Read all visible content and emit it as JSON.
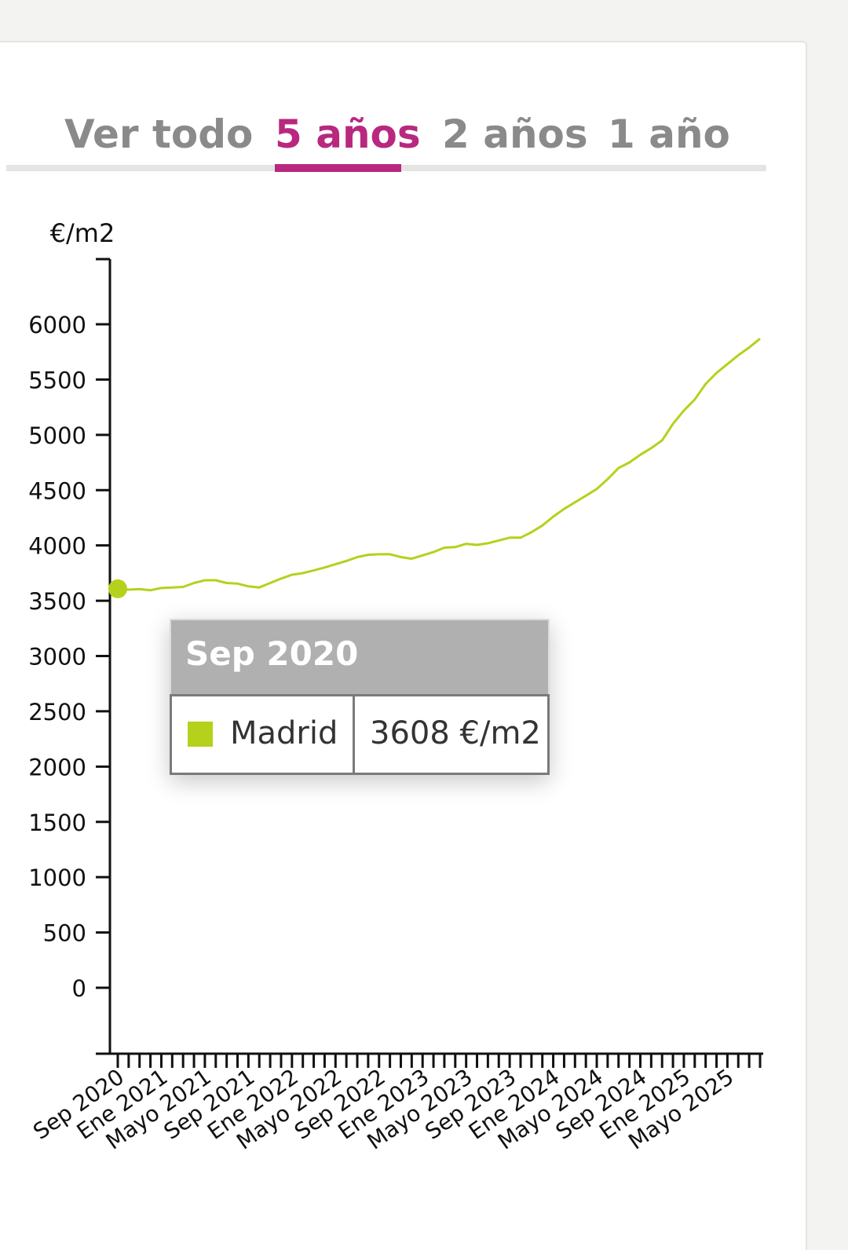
{
  "tabs": [
    {
      "label": "Ver todo",
      "active": false
    },
    {
      "label": "5 años",
      "active": true
    },
    {
      "label": "2 años",
      "active": false
    },
    {
      "label": "1 año",
      "active": false
    }
  ],
  "colors": {
    "accent": "#b8287f",
    "series": "#b5d11c",
    "axis": "#111111",
    "tab_inactive": "#8a8a8a"
  },
  "tooltip": {
    "title": "Sep 2020",
    "series_name": "Madrid",
    "value": "3608 €/m2"
  },
  "chart_data": {
    "type": "line",
    "ylabel": "€/m2",
    "ylim": [
      -600,
      6600
    ],
    "yticks": [
      0,
      500,
      1000,
      1500,
      2000,
      2500,
      3000,
      3500,
      4000,
      4500,
      5000,
      5500,
      6000
    ],
    "xtick_labels": [
      "Sep 2020",
      "Ene 2021",
      "Mayo 2021",
      "Sep 2021",
      "Ene 2022",
      "Mayo 2022",
      "Sep 2022",
      "Ene 2023",
      "Mayo 2023",
      "Sep 2023",
      "Ene 2024",
      "Mayo 2024",
      "Sep 2024",
      "Ene 2025",
      "Mayo 2025"
    ],
    "x": [
      "Sep 2020",
      "Oct 2020",
      "Nov 2020",
      "Dic 2020",
      "Ene 2021",
      "Feb 2021",
      "Mar 2021",
      "Abr 2021",
      "Mayo 2021",
      "Jun 2021",
      "Jul 2021",
      "Ago 2021",
      "Sep 2021",
      "Oct 2021",
      "Nov 2021",
      "Dic 2021",
      "Ene 2022",
      "Feb 2022",
      "Mar 2022",
      "Abr 2022",
      "Mayo 2022",
      "Jun 2022",
      "Jul 2022",
      "Ago 2022",
      "Sep 2022",
      "Oct 2022",
      "Nov 2022",
      "Dic 2022",
      "Ene 2023",
      "Feb 2023",
      "Mar 2023",
      "Abr 2023",
      "Mayo 2023",
      "Jun 2023",
      "Jul 2023",
      "Ago 2023",
      "Sep 2023",
      "Oct 2023",
      "Nov 2023",
      "Dic 2023",
      "Ene 2024",
      "Feb 2024",
      "Mar 2024",
      "Abr 2024",
      "Mayo 2024",
      "Jun 2024",
      "Jul 2024",
      "Ago 2024",
      "Sep 2024",
      "Oct 2024",
      "Nov 2024",
      "Dic 2024",
      "Ene 2025",
      "Feb 2025",
      "Mar 2025",
      "Abr 2025",
      "Mayo 2025",
      "Jun 2025",
      "Jul 2025",
      "Ago 2025"
    ],
    "series": [
      {
        "name": "Madrid",
        "values": [
          3608,
          3600,
          3605,
          3595,
          3615,
          3620,
          3625,
          3660,
          3685,
          3685,
          3660,
          3655,
          3630,
          3620,
          3660,
          3700,
          3735,
          3750,
          3775,
          3800,
          3830,
          3860,
          3895,
          3915,
          3920,
          3920,
          3895,
          3880,
          3910,
          3940,
          3980,
          3985,
          4015,
          4005,
          4020,
          4045,
          4070,
          4070,
          4120,
          4180,
          4260,
          4330,
          4390,
          4450,
          4510,
          4600,
          4700,
          4750,
          4820,
          4880,
          4950,
          5100,
          5220,
          5320,
          5460,
          5560,
          5640,
          5720,
          5790,
          5870
        ]
      }
    ],
    "highlight_index": 0
  }
}
